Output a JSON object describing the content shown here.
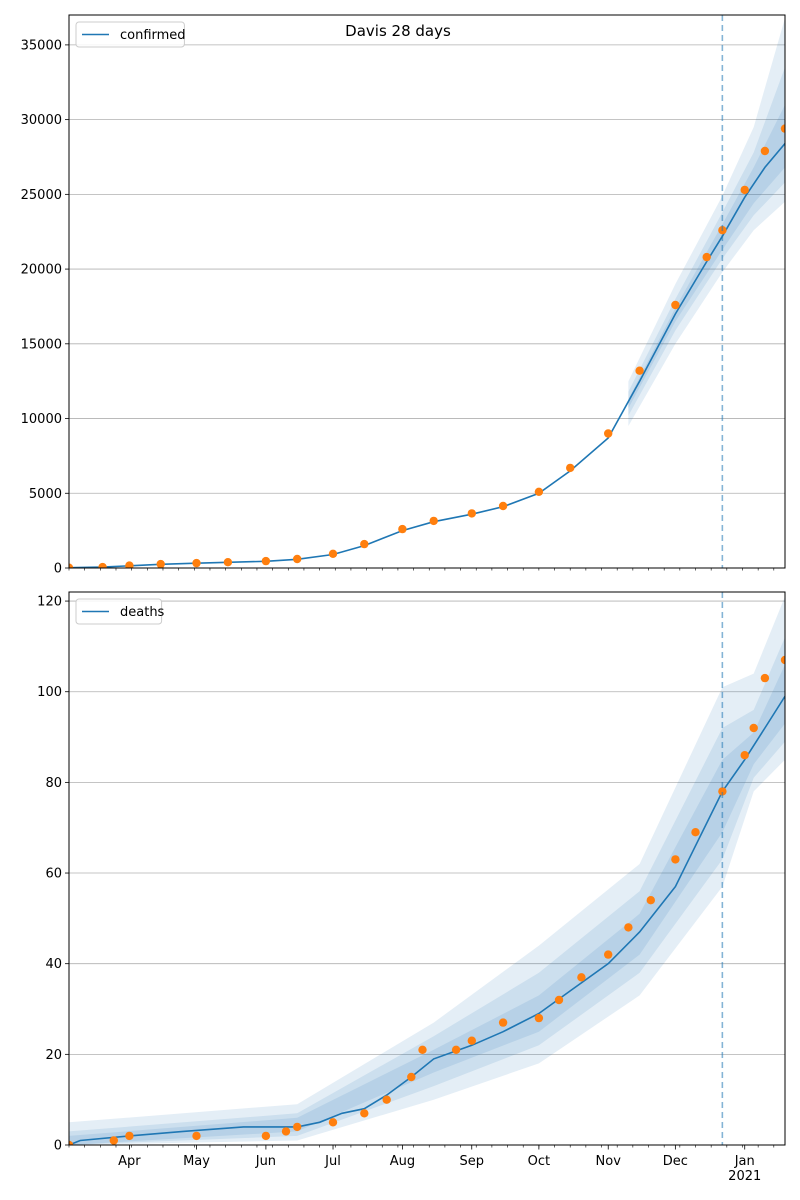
{
  "title": "Davis 28 days",
  "chart_data": [
    {
      "type": "line",
      "title": "Davis 28 days",
      "ylim": [
        0,
        37000
      ],
      "yticks": [
        0,
        5000,
        10000,
        15000,
        20000,
        25000,
        30000,
        35000
      ],
      "xlim": [
        "2020-03-05",
        "2021-01-19"
      ],
      "xtick_labels": [],
      "grid": "horizontal",
      "legend": "top-left",
      "forecast_start": "2020-12-22",
      "series": [
        {
          "name": "confirmed",
          "style": "line",
          "color": "#1f77b4",
          "points": [
            [
              "2020-03-05",
              20
            ],
            [
              "2020-03-20",
              60
            ],
            [
              "2020-04-01",
              150
            ],
            [
              "2020-04-15",
              250
            ],
            [
              "2020-05-01",
              320
            ],
            [
              "2020-05-15",
              380
            ],
            [
              "2020-06-01",
              450
            ],
            [
              "2020-06-15",
              580
            ],
            [
              "2020-07-01",
              900
            ],
            [
              "2020-07-15",
              1500
            ],
            [
              "2020-08-01",
              2500
            ],
            [
              "2020-08-15",
              3100
            ],
            [
              "2020-09-01",
              3600
            ],
            [
              "2020-09-15",
              4100
            ],
            [
              "2020-10-01",
              5000
            ],
            [
              "2020-10-15",
              6500
            ],
            [
              "2020-11-01",
              8700
            ],
            [
              "2020-11-15",
              12500
            ],
            [
              "2020-12-01",
              17000
            ],
            [
              "2020-12-15",
              20500
            ],
            [
              "2020-12-22",
              22200
            ],
            [
              "2021-01-01",
              24800
            ],
            [
              "2021-01-10",
              26800
            ],
            [
              "2021-01-19",
              28400
            ]
          ],
          "bands": [
            {
              "opacity": 0.12,
              "lower": [
                [
                  "2020-11-10",
                  9500
                ],
                [
                  "2020-12-01",
                  15000
                ],
                [
                  "2020-12-22",
                  19800
                ],
                [
                  "2021-01-05",
                  22600
                ],
                [
                  "2021-01-19",
                  24500
                ]
              ],
              "upper": [
                [
                  "2020-11-10",
                  12500
                ],
                [
                  "2020-12-01",
                  19000
                ],
                [
                  "2020-12-22",
                  24900
                ],
                [
                  "2021-01-05",
                  29500
                ],
                [
                  "2021-01-19",
                  36800
                ]
              ]
            },
            {
              "opacity": 0.12,
              "lower": [
                [
                  "2020-11-10",
                  10200
                ],
                [
                  "2020-12-01",
                  15900
                ],
                [
                  "2020-12-22",
                  20700
                ],
                [
                  "2021-01-05",
                  23600
                ],
                [
                  "2021-01-19",
                  25800
                ]
              ],
              "upper": [
                [
                  "2020-11-10",
                  11800
                ],
                [
                  "2020-12-01",
                  18000
                ],
                [
                  "2020-12-22",
                  23800
                ],
                [
                  "2021-01-05",
                  27800
                ],
                [
                  "2021-01-19",
                  33500
                ]
              ]
            },
            {
              "opacity": 0.12,
              "lower": [
                [
                  "2020-11-10",
                  10700
                ],
                [
                  "2020-12-01",
                  16500
                ],
                [
                  "2020-12-22",
                  21300
                ],
                [
                  "2021-01-05",
                  24400
                ],
                [
                  "2021-01-19",
                  26800
                ]
              ],
              "upper": [
                [
                  "2020-11-10",
                  11300
                ],
                [
                  "2020-12-01",
                  17400
                ],
                [
                  "2020-12-22",
                  23000
                ],
                [
                  "2021-01-05",
                  26800
                ],
                [
                  "2021-01-19",
                  31000
                ]
              ]
            }
          ]
        },
        {
          "name": "",
          "style": "markers",
          "color": "#ff7f0e",
          "points": [
            [
              "2020-03-05",
              20
            ],
            [
              "2020-03-20",
              60
            ],
            [
              "2020-04-01",
              160
            ],
            [
              "2020-04-15",
              260
            ],
            [
              "2020-05-01",
              330
            ],
            [
              "2020-05-15",
              390
            ],
            [
              "2020-06-01",
              460
            ],
            [
              "2020-06-15",
              600
            ],
            [
              "2020-07-01",
              950
            ],
            [
              "2020-07-15",
              1600
            ],
            [
              "2020-08-01",
              2600
            ],
            [
              "2020-08-15",
              3150
            ],
            [
              "2020-09-01",
              3650
            ],
            [
              "2020-09-15",
              4150
            ],
            [
              "2020-10-01",
              5100
            ],
            [
              "2020-10-15",
              6700
            ],
            [
              "2020-11-01",
              9000
            ],
            [
              "2020-11-15",
              13200
            ],
            [
              "2020-12-01",
              17600
            ],
            [
              "2020-12-15",
              20800
            ],
            [
              "2020-12-22",
              22600
            ],
            [
              "2021-01-01",
              25300
            ],
            [
              "2021-01-10",
              27900
            ],
            [
              "2021-01-19",
              29400
            ]
          ]
        }
      ]
    },
    {
      "type": "line",
      "title": "",
      "ylim": [
        0,
        122
      ],
      "yticks": [
        0,
        20,
        40,
        60,
        80,
        100,
        120
      ],
      "xlim": [
        "2020-03-05",
        "2021-01-19"
      ],
      "xtick_labels": [
        "Apr",
        "May",
        "Jun",
        "Jul",
        "Aug",
        "Sep",
        "Oct",
        "Nov",
        "Dec",
        "Jan\n2021"
      ],
      "xtick_dates": [
        "2020-04-01",
        "2020-05-01",
        "2020-06-01",
        "2020-07-01",
        "2020-08-01",
        "2020-09-01",
        "2020-10-01",
        "2020-11-01",
        "2020-12-01",
        "2021-01-01"
      ],
      "grid": "horizontal",
      "legend": "top-left",
      "forecast_start": "2020-12-22",
      "series": [
        {
          "name": "deaths",
          "style": "line",
          "color": "#1f77b4",
          "points": [
            [
              "2020-03-05",
              0
            ],
            [
              "2020-03-10",
              1
            ],
            [
              "2020-04-01",
              2
            ],
            [
              "2020-04-25",
              3
            ],
            [
              "2020-05-22",
              4
            ],
            [
              "2020-06-15",
              4
            ],
            [
              "2020-06-25",
              5
            ],
            [
              "2020-07-05",
              7
            ],
            [
              "2020-07-15",
              8
            ],
            [
              "2020-07-25",
              11
            ],
            [
              "2020-08-05",
              15
            ],
            [
              "2020-08-15",
              19
            ],
            [
              "2020-09-01",
              22
            ],
            [
              "2020-09-15",
              25
            ],
            [
              "2020-10-01",
              29
            ],
            [
              "2020-10-15",
              34
            ],
            [
              "2020-11-01",
              40
            ],
            [
              "2020-11-15",
              47
            ],
            [
              "2020-12-01",
              57
            ],
            [
              "2020-12-10",
              66
            ],
            [
              "2020-12-22",
              78
            ],
            [
              "2021-01-01",
              85
            ],
            [
              "2021-01-10",
              92
            ],
            [
              "2021-01-19",
              99
            ]
          ],
          "bands": [
            {
              "opacity": 0.12,
              "lower": [
                [
                  "2020-03-05",
                  0
                ],
                [
                  "2020-06-15",
                  1
                ],
                [
                  "2020-08-15",
                  10
                ],
                [
                  "2020-10-01",
                  18
                ],
                [
                  "2020-11-15",
                  33
                ],
                [
                  "2020-12-22",
                  57
                ],
                [
                  "2021-01-05",
                  78
                ],
                [
                  "2021-01-19",
                  85
                ]
              ],
              "upper": [
                [
                  "2020-03-05",
                  5
                ],
                [
                  "2020-06-15",
                  9
                ],
                [
                  "2020-08-15",
                  27
                ],
                [
                  "2020-10-01",
                  44
                ],
                [
                  "2020-11-15",
                  62
                ],
                [
                  "2020-12-22",
                  101
                ],
                [
                  "2021-01-05",
                  104
                ],
                [
                  "2021-01-19",
                  121
                ]
              ]
            },
            {
              "opacity": 0.12,
              "lower": [
                [
                  "2020-03-05",
                  0
                ],
                [
                  "2020-06-15",
                  2
                ],
                [
                  "2020-08-15",
                  13
                ],
                [
                  "2020-10-01",
                  22
                ],
                [
                  "2020-11-15",
                  38
                ],
                [
                  "2020-12-22",
                  63
                ],
                [
                  "2021-01-05",
                  81
                ],
                [
                  "2021-01-19",
                  89
                ]
              ],
              "upper": [
                [
                  "2020-03-05",
                  3
                ],
                [
                  "2020-06-15",
                  7
                ],
                [
                  "2020-08-15",
                  24
                ],
                [
                  "2020-10-01",
                  38
                ],
                [
                  "2020-11-15",
                  56
                ],
                [
                  "2020-12-22",
                  92
                ],
                [
                  "2021-01-05",
                  96
                ],
                [
                  "2021-01-19",
                  112
                ]
              ]
            },
            {
              "opacity": 0.12,
              "lower": [
                [
                  "2020-03-05",
                  0
                ],
                [
                  "2020-06-15",
                  3
                ],
                [
                  "2020-08-15",
                  16
                ],
                [
                  "2020-10-01",
                  25
                ],
                [
                  "2020-11-15",
                  42
                ],
                [
                  "2020-12-22",
                  69
                ],
                [
                  "2021-01-05",
                  84
                ],
                [
                  "2021-01-19",
                  93
                ]
              ],
              "upper": [
                [
                  "2020-03-05",
                  2
                ],
                [
                  "2020-06-15",
                  6
                ],
                [
                  "2020-08-15",
                  21
                ],
                [
                  "2020-10-01",
                  33
                ],
                [
                  "2020-11-15",
                  51
                ],
                [
                  "2020-12-22",
                  85
                ],
                [
                  "2021-01-05",
                  91
                ],
                [
                  "2021-01-19",
                  106
                ]
              ]
            }
          ]
        },
        {
          "name": "",
          "style": "markers",
          "color": "#ff7f0e",
          "points": [
            [
              "2020-03-05",
              0
            ],
            [
              "2020-03-25",
              1
            ],
            [
              "2020-04-01",
              2
            ],
            [
              "2020-05-01",
              2
            ],
            [
              "2020-06-01",
              2
            ],
            [
              "2020-06-10",
              3
            ],
            [
              "2020-06-15",
              4
            ],
            [
              "2020-07-01",
              5
            ],
            [
              "2020-07-15",
              7
            ],
            [
              "2020-07-25",
              10
            ],
            [
              "2020-08-05",
              15
            ],
            [
              "2020-08-10",
              21
            ],
            [
              "2020-08-25",
              21
            ],
            [
              "2020-09-01",
              23
            ],
            [
              "2020-09-15",
              27
            ],
            [
              "2020-10-01",
              28
            ],
            [
              "2020-10-10",
              32
            ],
            [
              "2020-10-20",
              37
            ],
            [
              "2020-11-01",
              42
            ],
            [
              "2020-11-10",
              48
            ],
            [
              "2020-11-20",
              54
            ],
            [
              "2020-12-01",
              63
            ],
            [
              "2020-12-10",
              69
            ],
            [
              "2020-12-22",
              78
            ],
            [
              "2021-01-01",
              86
            ],
            [
              "2021-01-05",
              92
            ],
            [
              "2021-01-10",
              103
            ],
            [
              "2021-01-19",
              107
            ]
          ]
        }
      ]
    }
  ]
}
